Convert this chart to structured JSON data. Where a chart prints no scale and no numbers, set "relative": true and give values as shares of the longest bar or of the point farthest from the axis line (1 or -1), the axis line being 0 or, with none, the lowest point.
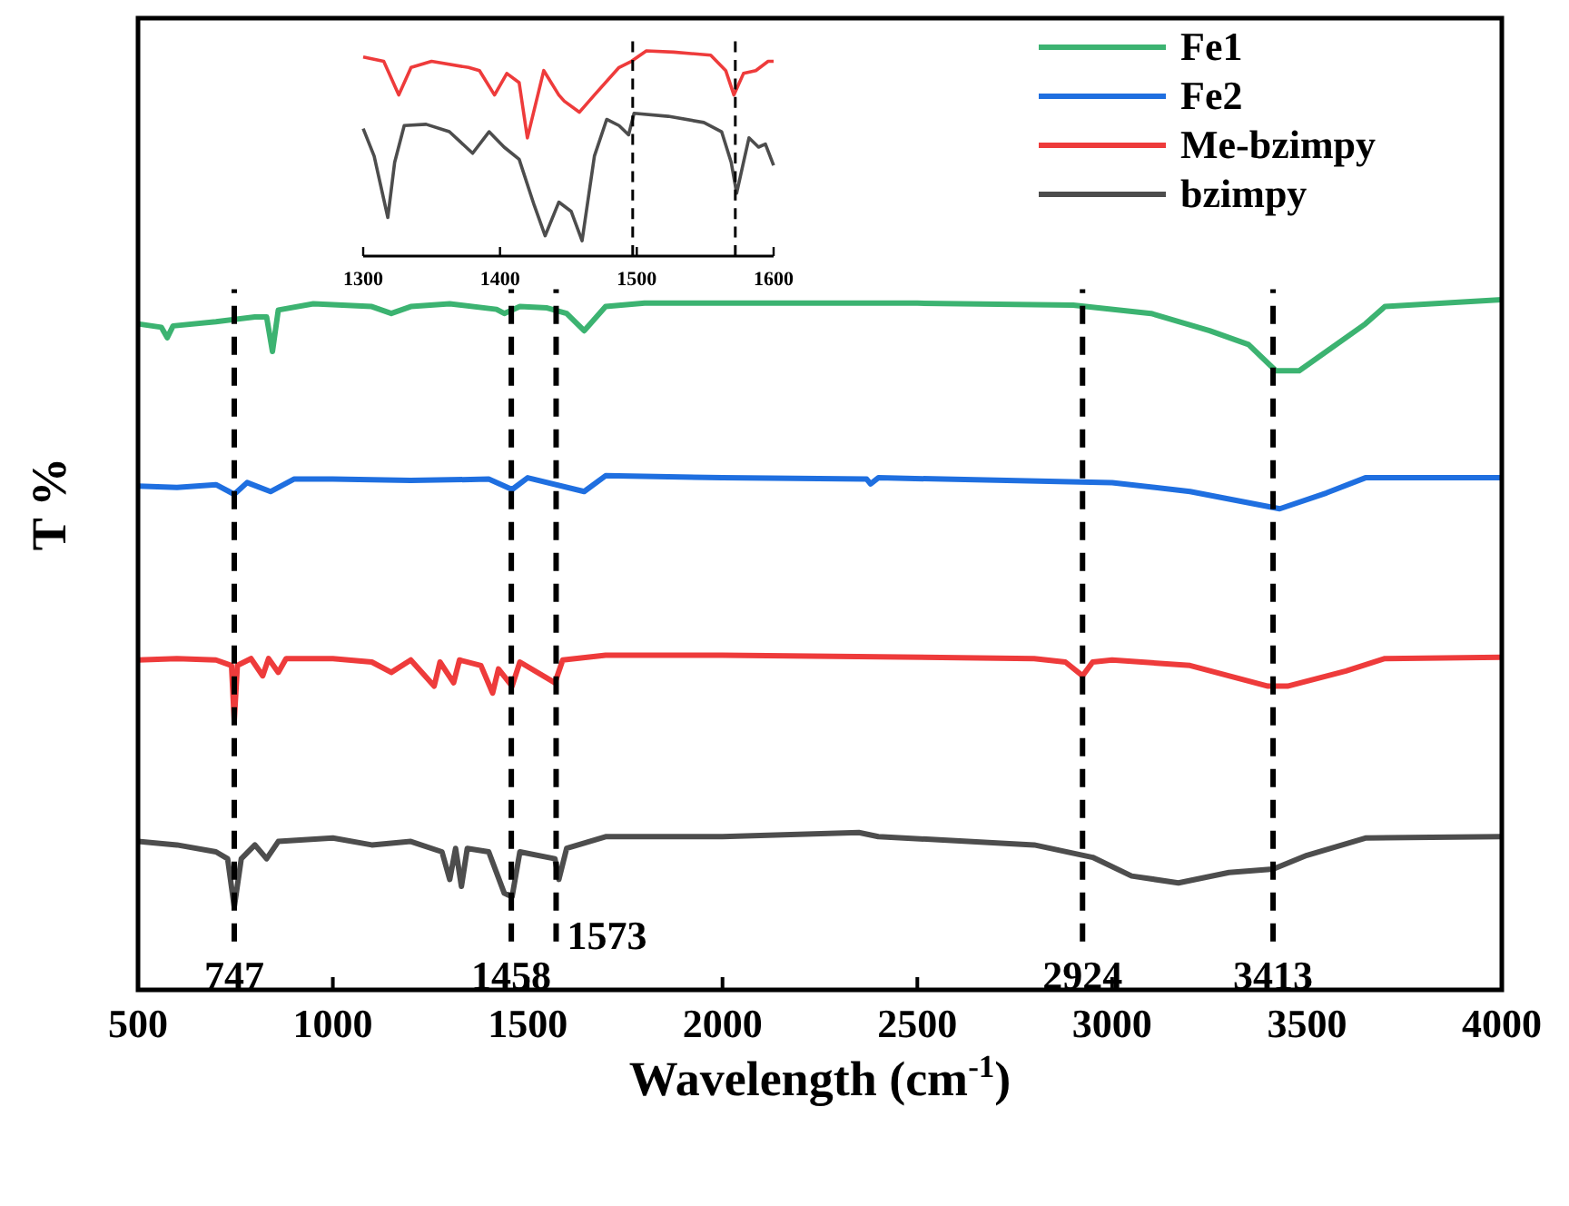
{
  "chart_data": [
    {
      "type": "line",
      "xlabel": "Wavelength (cm$^{-1}$)",
      "ylabel": "T %",
      "relative": true,
      "xlim": [
        500,
        4000
      ],
      "xticks": [
        500,
        1000,
        1500,
        2000,
        2500,
        3000,
        3500,
        4000
      ],
      "tick_labels": "x",
      "legend": "top right",
      "line_style": "solid",
      "series": [
        {
          "name": "Fe1",
          "color": "#3cb371",
          "x": [
            500,
            560,
            575,
            590,
            700,
            800,
            830,
            845,
            860,
            950,
            1100,
            1150,
            1200,
            1300,
            1420,
            1440,
            1480,
            1550,
            1600,
            1645,
            1700,
            1800,
            2500,
            2900,
            3100,
            3250,
            3350,
            3420,
            3480,
            3550,
            3650,
            3700,
            4000
          ],
          "values": [
            0.965,
            0.96,
            0.945,
            0.962,
            0.968,
            0.975,
            0.975,
            0.925,
            0.985,
            0.994,
            0.99,
            0.98,
            0.99,
            0.994,
            0.986,
            0.98,
            0.99,
            0.988,
            0.98,
            0.955,
            0.99,
            0.995,
            0.995,
            0.992,
            0.98,
            0.955,
            0.935,
            0.897,
            0.897,
            0.925,
            0.965,
            0.99,
            1
          ]
        },
        {
          "name": "Fe2",
          "color": "#1f6fe0",
          "x": [
            500,
            600,
            700,
            747,
            780,
            840,
            900,
            1000,
            1200,
            1400,
            1460,
            1500,
            1645,
            1700,
            2000,
            2370,
            2380,
            2400,
            3000,
            3200,
            3430,
            3550,
            3650,
            4000
          ],
          "values": [
            0.73,
            0.728,
            0.732,
            0.718,
            0.735,
            0.722,
            0.74,
            0.74,
            0.738,
            0.74,
            0.725,
            0.742,
            0.722,
            0.745,
            0.742,
            0.74,
            0.733,
            0.742,
            0.735,
            0.722,
            0.697,
            0.72,
            0.742,
            0.742
          ]
        },
        {
          "name": "Me-bzimpy",
          "color": "#ee3b3b",
          "x": [
            500,
            600,
            700,
            740,
            747,
            755,
            790,
            820,
            835,
            860,
            880,
            1000,
            1100,
            1150,
            1200,
            1260,
            1275,
            1310,
            1325,
            1380,
            1410,
            1425,
            1460,
            1480,
            1570,
            1590,
            1700,
            2000,
            2800,
            2880,
            2924,
            2950,
            3000,
            3200,
            3400,
            3450,
            3600,
            3700,
            4000
          ],
          "values": [
            0.478,
            0.48,
            0.478,
            0.47,
            0.39,
            0.47,
            0.48,
            0.455,
            0.48,
            0.46,
            0.48,
            0.48,
            0.475,
            0.46,
            0.478,
            0.44,
            0.475,
            0.445,
            0.478,
            0.47,
            0.43,
            0.465,
            0.44,
            0.475,
            0.445,
            0.478,
            0.485,
            0.485,
            0.48,
            0.475,
            0.455,
            0.475,
            0.478,
            0.47,
            0.44,
            0.44,
            0.462,
            0.48,
            0.482
          ]
        },
        {
          "name": "bzimpy",
          "color": "#4d4d4d",
          "x": [
            500,
            600,
            700,
            730,
            747,
            765,
            800,
            830,
            860,
            1000,
            1100,
            1200,
            1280,
            1300,
            1315,
            1330,
            1345,
            1400,
            1440,
            1460,
            1480,
            1570,
            1580,
            1600,
            1700,
            2000,
            2350,
            2400,
            2800,
            2950,
            3050,
            3170,
            3300,
            3413,
            3500,
            3650,
            4000
          ],
          "values": [
            0.215,
            0.21,
            0.2,
            0.19,
            0.12,
            0.19,
            0.21,
            0.19,
            0.215,
            0.22,
            0.21,
            0.215,
            0.2,
            0.16,
            0.205,
            0.15,
            0.205,
            0.2,
            0.14,
            0.135,
            0.2,
            0.19,
            0.16,
            0.205,
            0.222,
            0.222,
            0.228,
            0.222,
            0.21,
            0.192,
            0.165,
            0.155,
            0.17,
            0.175,
            0.195,
            0.22,
            0.222
          ]
        }
      ],
      "ref_lines": [
        {
          "axis": "x",
          "value": 747,
          "label": "747",
          "line_style": "dashed",
          "color": "#000000"
        },
        {
          "axis": "x",
          "value": 1458,
          "label": "1458",
          "line_style": "dashed",
          "color": "#000000"
        },
        {
          "axis": "x",
          "value": 1573,
          "label": "1573",
          "line_style": "dashed",
          "color": "#000000"
        },
        {
          "axis": "x",
          "value": 2924,
          "label": "2924",
          "line_style": "dashed",
          "color": "#000000"
        },
        {
          "axis": "x",
          "value": 3413,
          "label": "3413",
          "line_style": "dashed",
          "color": "#000000"
        }
      ]
    },
    {
      "type": "line",
      "relative": true,
      "xlim": [
        1300,
        1600
      ],
      "xticks": [
        1300,
        1400,
        1500,
        1600
      ],
      "tick_labels": "x",
      "line_style": "solid",
      "series": [
        {
          "color": "#ee3b3b",
          "x": [
            1300,
            1315,
            1326,
            1335,
            1350,
            1377,
            1385,
            1396,
            1405,
            1414,
            1420,
            1432,
            1443,
            1447,
            1458,
            1469,
            1487,
            1496,
            1507,
            1527,
            1554,
            1565,
            1571,
            1578,
            1587,
            1596,
            1600
          ],
          "values": [
            0.97,
            0.949,
            0.785,
            0.919,
            0.949,
            0.919,
            0.904,
            0.785,
            0.89,
            0.845,
            0.576,
            0.904,
            0.785,
            0.755,
            0.701,
            0.785,
            0.919,
            0.949,
            1,
            0.994,
            0.979,
            0.904,
            0.785,
            0.89,
            0.904,
            0.949,
            0.949
          ]
        },
        {
          "color": "#4d4d4d",
          "x": [
            1300,
            1308,
            1318,
            1323,
            1330,
            1346,
            1363,
            1380,
            1392,
            1403,
            1414,
            1425,
            1433,
            1443,
            1452,
            1460,
            1469,
            1478,
            1487,
            1494,
            1498,
            1523,
            1549,
            1562,
            1569,
            1573,
            1578,
            1582,
            1589,
            1594,
            1600
          ],
          "values": [
            0.621,
            0.487,
            0.188,
            0.457,
            0.636,
            0.642,
            0.606,
            0.501,
            0.606,
            0.531,
            0.472,
            0.248,
            0.099,
            0.263,
            0.218,
            0.075,
            0.487,
            0.666,
            0.636,
            0.591,
            0.696,
            0.681,
            0.651,
            0.606,
            0.457,
            0.307,
            0.457,
            0.576,
            0.531,
            0.546,
            0.442
          ]
        }
      ],
      "ref_lines": [
        {
          "axis": "x",
          "value": 1497,
          "line_style": "dashed",
          "color": "#000000"
        },
        {
          "axis": "x",
          "value": 1572,
          "line_style": "dashed",
          "color": "#000000"
        }
      ]
    }
  ]
}
